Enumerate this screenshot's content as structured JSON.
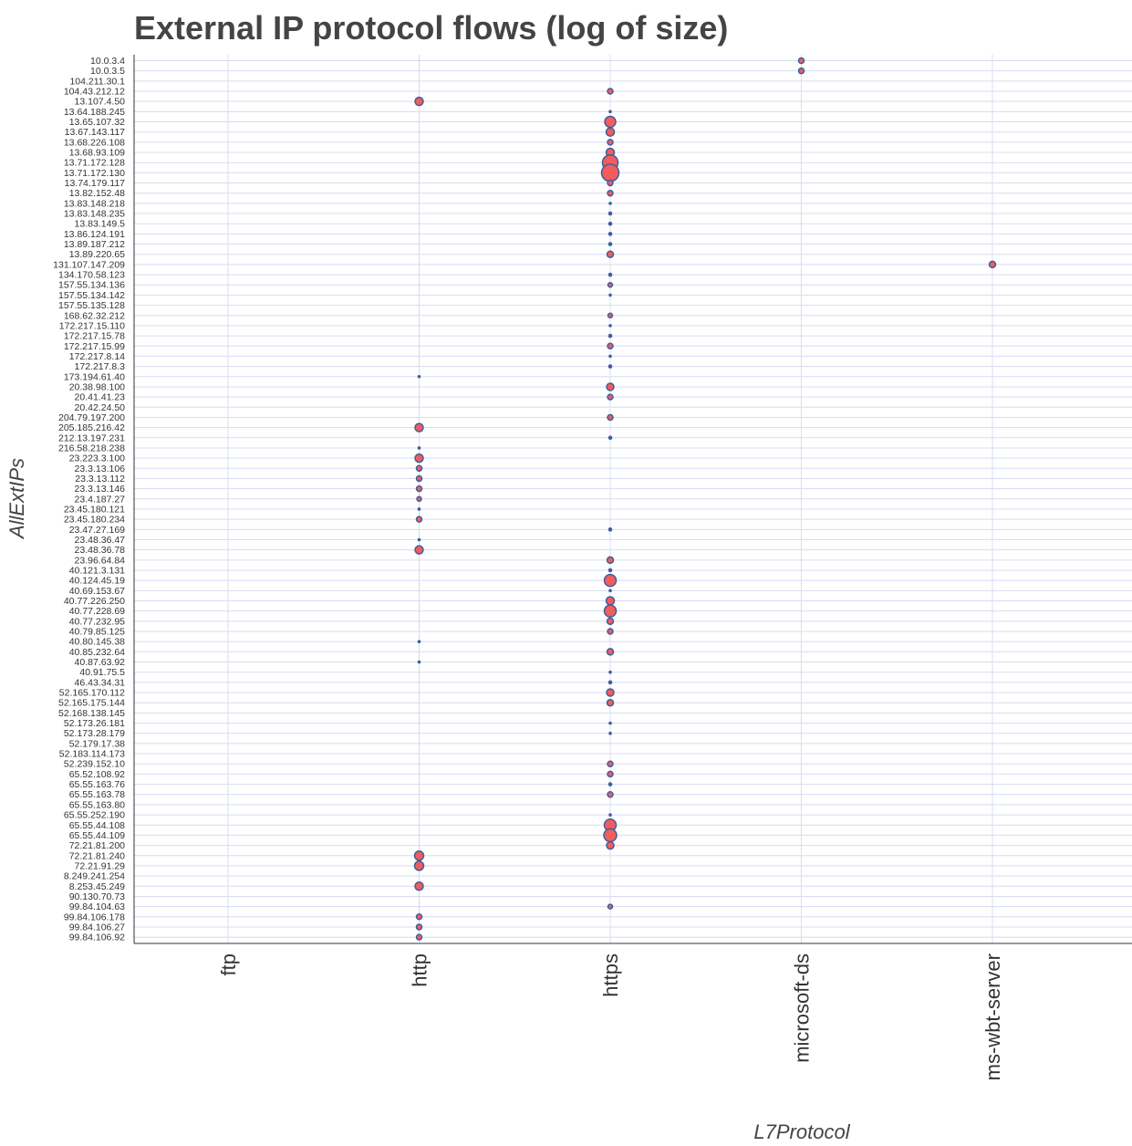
{
  "chart_data": {
    "type": "scatter",
    "title": "External IP protocol flows (log of size)",
    "xlabel": "L7Protocol",
    "ylabel": "AllExtIPs",
    "grid": true,
    "colors": {
      "marker_fill": "#f25c5c",
      "marker_edge": "#3d5f9c",
      "grid": "#d8dcf0",
      "axis": "#333333"
    },
    "x_categories": [
      "ftp",
      "http",
      "https",
      "microsoft-ds",
      "ms-wbt-server"
    ],
    "y_categories": [
      "10.0.3.4",
      "10.0.3.5",
      "104.211.30.1",
      "104.43.212.12",
      "13.107.4.50",
      "13.64.188.245",
      "13.65.107.32",
      "13.67.143.117",
      "13.68.226.108",
      "13.68.93.109",
      "13.71.172.128",
      "13.71.172.130",
      "13.74.179.117",
      "13.82.152.48",
      "13.83.148.218",
      "13.83.148.235",
      "13.83.149.5",
      "13.86.124.191",
      "13.89.187.212",
      "13.89.220.65",
      "131.107.147.209",
      "134.170.58.123",
      "157.55.134.136",
      "157.55.134.142",
      "157.55.135.128",
      "168.62.32.212",
      "172.217.15.110",
      "172.217.15.78",
      "172.217.15.99",
      "172.217.8.14",
      "172.217.8.3",
      "173.194.61.40",
      "20.38.98.100",
      "20.41.41.23",
      "20.42.24.50",
      "204.79.197.200",
      "205.185.216.42",
      "212.13.197.231",
      "216.58.218.238",
      "23.223.3.100",
      "23.3.13.106",
      "23.3.13.112",
      "23.3.13.146",
      "23.4.187.27",
      "23.45.180.121",
      "23.45.180.234",
      "23.47.27.169",
      "23.48.36.47",
      "23.48.36.78",
      "23.96.64.84",
      "40.121.3.131",
      "40.124.45.19",
      "40.69.153.67",
      "40.77.226.250",
      "40.77.228.69",
      "40.77.232.95",
      "40.79.85.125",
      "40.80.145.38",
      "40.85.232.64",
      "40.87.63.92",
      "40.91.75.5",
      "46.43.34.31",
      "52.165.170.112",
      "52.165.175.144",
      "52.168.138.145",
      "52.173.26.181",
      "52.173.28.179",
      "52.179.17.38",
      "52.183.114.173",
      "52.239.152.10",
      "65.52.108.92",
      "65.55.163.76",
      "65.55.163.78",
      "65.55.163.80",
      "65.55.252.190",
      "65.55.44.108",
      "65.55.44.109",
      "72.21.81.200",
      "72.21.81.240",
      "72.21.91.29",
      "8.249.241.254",
      "8.253.45.249",
      "90.130.70.73",
      "99.84.104.63",
      "99.84.106.178",
      "99.84.106.27",
      "99.84.106.92"
    ],
    "points": [
      {
        "ip": "10.0.3.4",
        "protocol": "microsoft-ds",
        "size": 3
      },
      {
        "ip": "10.0.3.5",
        "protocol": "microsoft-ds",
        "size": 3
      },
      {
        "ip": "104.43.212.12",
        "protocol": "https",
        "size": 3
      },
      {
        "ip": "13.107.4.50",
        "protocol": "http",
        "size": 4.5
      },
      {
        "ip": "13.64.188.245",
        "protocol": "https",
        "size": 1.5
      },
      {
        "ip": "13.65.107.32",
        "protocol": "https",
        "size": 6
      },
      {
        "ip": "13.67.143.117",
        "protocol": "https",
        "size": 4.5
      },
      {
        "ip": "13.68.226.108",
        "protocol": "https",
        "size": 3
      },
      {
        "ip": "13.68.93.109",
        "protocol": "https",
        "size": 4.5
      },
      {
        "ip": "13.71.172.128",
        "protocol": "https",
        "size": 8.5
      },
      {
        "ip": "13.71.172.130",
        "protocol": "https",
        "size": 9.5
      },
      {
        "ip": "13.74.179.117",
        "protocol": "https",
        "size": 3
      },
      {
        "ip": "13.82.152.48",
        "protocol": "https",
        "size": 3
      },
      {
        "ip": "13.83.148.218",
        "protocol": "https",
        "size": 1.5
      },
      {
        "ip": "13.83.148.235",
        "protocol": "https",
        "size": 2
      },
      {
        "ip": "13.83.149.5",
        "protocol": "https",
        "size": 2
      },
      {
        "ip": "13.86.124.191",
        "protocol": "https",
        "size": 2
      },
      {
        "ip": "13.89.187.212",
        "protocol": "https",
        "size": 2
      },
      {
        "ip": "13.89.220.65",
        "protocol": "https",
        "size": 3.5
      },
      {
        "ip": "131.107.147.209",
        "protocol": "ms-wbt-server",
        "size": 3.5
      },
      {
        "ip": "134.170.58.123",
        "protocol": "https",
        "size": 2
      },
      {
        "ip": "157.55.134.136",
        "protocol": "https",
        "size": 2.5
      },
      {
        "ip": "157.55.134.142",
        "protocol": "https",
        "size": 1.5
      },
      {
        "ip": "168.62.32.212",
        "protocol": "https",
        "size": 2.5
      },
      {
        "ip": "172.217.15.110",
        "protocol": "https",
        "size": 1.5
      },
      {
        "ip": "172.217.15.78",
        "protocol": "https",
        "size": 2
      },
      {
        "ip": "172.217.15.99",
        "protocol": "https",
        "size": 3
      },
      {
        "ip": "172.217.8.14",
        "protocol": "https",
        "size": 1.5
      },
      {
        "ip": "172.217.8.3",
        "protocol": "https",
        "size": 2
      },
      {
        "ip": "173.194.61.40",
        "protocol": "http",
        "size": 1.5
      },
      {
        "ip": "20.38.98.100",
        "protocol": "https",
        "size": 4
      },
      {
        "ip": "20.41.41.23",
        "protocol": "https",
        "size": 3
      },
      {
        "ip": "204.79.197.200",
        "protocol": "https",
        "size": 3
      },
      {
        "ip": "205.185.216.42",
        "protocol": "http",
        "size": 4.5
      },
      {
        "ip": "212.13.197.231",
        "protocol": "https",
        "size": 2
      },
      {
        "ip": "216.58.218.238",
        "protocol": "http",
        "size": 1.5
      },
      {
        "ip": "23.223.3.100",
        "protocol": "http",
        "size": 4.5
      },
      {
        "ip": "23.3.13.106",
        "protocol": "http",
        "size": 3
      },
      {
        "ip": "23.3.13.112",
        "protocol": "http",
        "size": 3
      },
      {
        "ip": "23.3.13.146",
        "protocol": "http",
        "size": 3
      },
      {
        "ip": "23.4.187.27",
        "protocol": "http",
        "size": 2.5
      },
      {
        "ip": "23.45.180.121",
        "protocol": "http",
        "size": 1.5
      },
      {
        "ip": "23.45.180.234",
        "protocol": "http",
        "size": 3
      },
      {
        "ip": "23.47.27.169",
        "protocol": "https",
        "size": 2
      },
      {
        "ip": "23.48.36.47",
        "protocol": "http",
        "size": 1.5
      },
      {
        "ip": "23.48.36.78",
        "protocol": "http",
        "size": 4.5
      },
      {
        "ip": "23.96.64.84",
        "protocol": "https",
        "size": 3.5
      },
      {
        "ip": "40.121.3.131",
        "protocol": "https",
        "size": 2
      },
      {
        "ip": "40.124.45.19",
        "protocol": "https",
        "size": 6.5
      },
      {
        "ip": "40.69.153.67",
        "protocol": "https",
        "size": 1.5
      },
      {
        "ip": "40.77.226.250",
        "protocol": "https",
        "size": 4.5
      },
      {
        "ip": "40.77.228.69",
        "protocol": "https",
        "size": 6.5
      },
      {
        "ip": "40.77.232.95",
        "protocol": "https",
        "size": 3.5
      },
      {
        "ip": "40.79.85.125",
        "protocol": "https",
        "size": 3
      },
      {
        "ip": "40.80.145.38",
        "protocol": "http",
        "size": 1.5
      },
      {
        "ip": "40.85.232.64",
        "protocol": "https",
        "size": 3.5
      },
      {
        "ip": "40.87.63.92",
        "protocol": "http",
        "size": 1.5
      },
      {
        "ip": "40.91.75.5",
        "protocol": "https",
        "size": 1.5
      },
      {
        "ip": "46.43.34.31",
        "protocol": "https",
        "size": 2
      },
      {
        "ip": "52.165.170.112",
        "protocol": "https",
        "size": 4
      },
      {
        "ip": "52.165.175.144",
        "protocol": "https",
        "size": 3.5
      },
      {
        "ip": "52.173.26.181",
        "protocol": "https",
        "size": 1.5
      },
      {
        "ip": "52.173.28.179",
        "protocol": "https",
        "size": 1.5
      },
      {
        "ip": "52.239.152.10",
        "protocol": "https",
        "size": 3
      },
      {
        "ip": "65.52.108.92",
        "protocol": "https",
        "size": 3
      },
      {
        "ip": "65.55.163.76",
        "protocol": "https",
        "size": 2
      },
      {
        "ip": "65.55.163.78",
        "protocol": "https",
        "size": 3
      },
      {
        "ip": "65.55.252.190",
        "protocol": "https",
        "size": 1.5
      },
      {
        "ip": "65.55.44.108",
        "protocol": "https",
        "size": 6.5
      },
      {
        "ip": "65.55.44.109",
        "protocol": "https",
        "size": 7
      },
      {
        "ip": "72.21.81.200",
        "protocol": "https",
        "size": 4
      },
      {
        "ip": "72.21.81.240",
        "protocol": "http",
        "size": 5
      },
      {
        "ip": "72.21.91.29",
        "protocol": "http",
        "size": 5
      },
      {
        "ip": "8.253.45.249",
        "protocol": "http",
        "size": 4.5
      },
      {
        "ip": "99.84.104.63",
        "protocol": "https",
        "size": 2.5
      },
      {
        "ip": "99.84.106.178",
        "protocol": "http",
        "size": 3
      },
      {
        "ip": "99.84.106.27",
        "protocol": "http",
        "size": 3
      },
      {
        "ip": "99.84.106.92",
        "protocol": "http",
        "size": 3
      }
    ]
  }
}
